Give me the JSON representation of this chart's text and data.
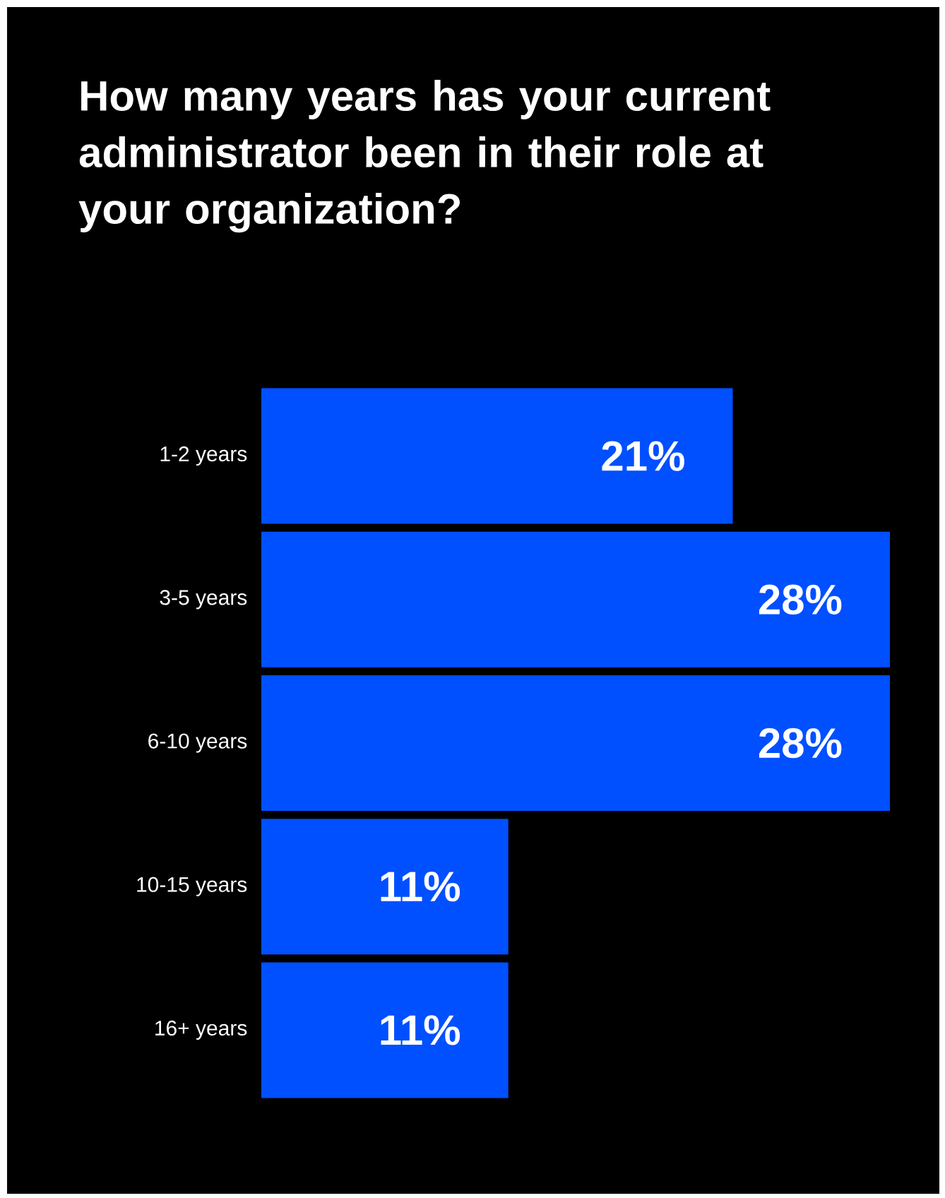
{
  "chart_data": {
    "type": "bar",
    "orientation": "horizontal",
    "title": "How many years has your current administrator been in their role at your organization?",
    "categories": [
      "1-2 years",
      "3-5 years",
      "6-10 years",
      "10-15 years",
      "16+ years"
    ],
    "values": [
      21,
      28,
      28,
      11,
      11
    ],
    "value_labels": [
      "21%",
      "28%",
      "28%",
      "11%",
      "11%"
    ],
    "color": "#0050ff"
  }
}
